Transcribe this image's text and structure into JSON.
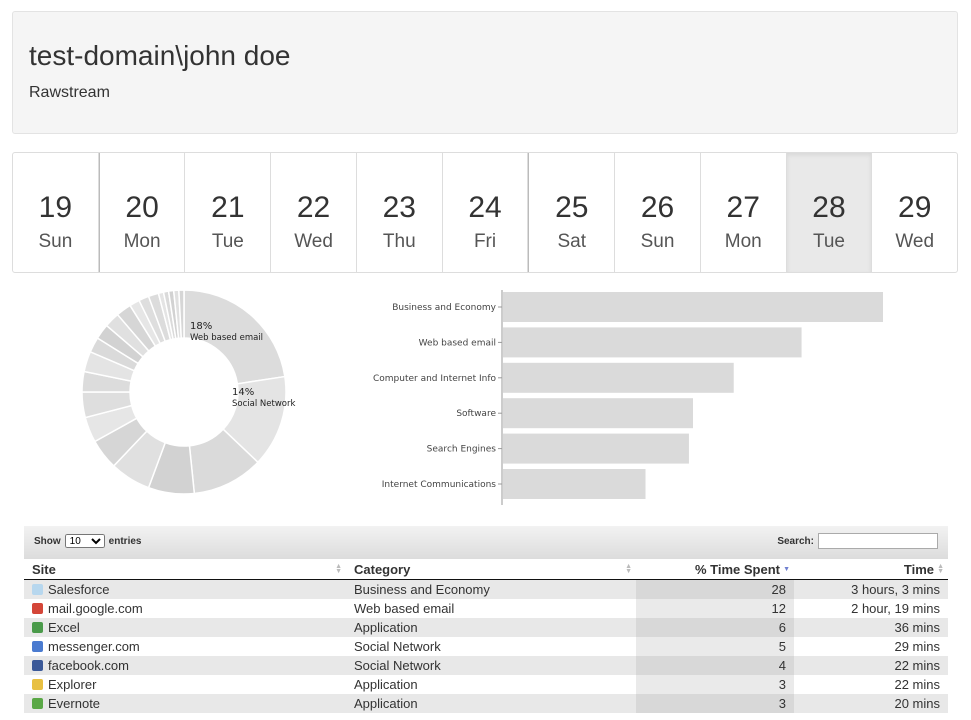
{
  "header": {
    "title": "test-domain\\john doe",
    "subtitle": "Rawstream"
  },
  "days": [
    {
      "num": "19",
      "name": "Sun"
    },
    {
      "num": "20",
      "name": "Mon"
    },
    {
      "num": "21",
      "name": "Tue"
    },
    {
      "num": "22",
      "name": "Wed"
    },
    {
      "num": "23",
      "name": "Thu"
    },
    {
      "num": "24",
      "name": "Fri"
    },
    {
      "num": "25",
      "name": "Sat"
    },
    {
      "num": "26",
      "name": "Sun"
    },
    {
      "num": "27",
      "name": "Mon"
    },
    {
      "num": "28",
      "name": "Tue"
    },
    {
      "num": "29",
      "name": "Wed"
    }
  ],
  "chart_data": [
    {
      "type": "pie",
      "labels_shown": [
        {
          "pct": "18%",
          "label": "Web based email"
        },
        {
          "pct": "14%",
          "label": "Social Network"
        }
      ],
      "values": [
        28,
        18,
        14,
        9,
        8,
        6,
        5,
        5,
        4,
        4,
        3,
        3,
        3,
        3,
        2,
        2,
        2,
        1,
        1,
        1,
        1,
        1
      ]
    },
    {
      "type": "bar",
      "orientation": "horizontal",
      "categories": [
        "Business and Economy",
        "Web based email",
        "Computer and Internet Info",
        "Software",
        "Search Engines",
        "Internet Communications"
      ],
      "values": [
        28,
        22,
        17,
        14,
        13.7,
        10.5
      ]
    }
  ],
  "table": {
    "show_label": "Show",
    "entries_label": "entries",
    "page_size": "10",
    "search_label": "Search:",
    "columns": [
      "Site",
      "Category",
      "% Time Spent",
      "Time"
    ],
    "rows": [
      {
        "site": "Salesforce",
        "category": "Business and Economy",
        "pct": "28",
        "time": "3 hours, 3 mins",
        "icon": "cloud-icon",
        "color": "#b7d7ee"
      },
      {
        "site": "mail.google.com",
        "category": "Web based email",
        "pct": "12",
        "time": "2 hour, 19 mins",
        "icon": "gmail-icon",
        "color": "#d44638"
      },
      {
        "site": "Excel",
        "category": "Application",
        "pct": "6",
        "time": "36 mins",
        "icon": "excel-icon",
        "color": "#4a9a4a"
      },
      {
        "site": "messenger.com",
        "category": "Social Network",
        "pct": "5",
        "time": "29 mins",
        "icon": "messenger-icon",
        "color": "#4a7bd0"
      },
      {
        "site": "facebook.com",
        "category": "Social Network",
        "pct": "4",
        "time": "22 mins",
        "icon": "facebook-icon",
        "color": "#3b5998"
      },
      {
        "site": "Explorer",
        "category": "Application",
        "pct": "3",
        "time": "22 mins",
        "icon": "folder-icon",
        "color": "#e8c042"
      },
      {
        "site": "Evernote",
        "category": "Application",
        "pct": "3",
        "time": "20 mins",
        "icon": "evernote-icon",
        "color": "#5aa846"
      }
    ]
  }
}
